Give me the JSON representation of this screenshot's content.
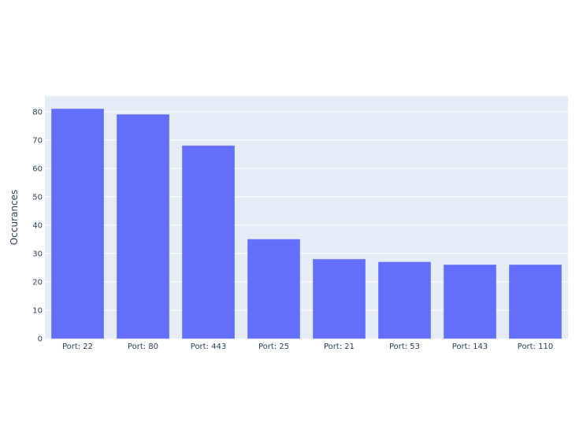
{
  "chart_data": {
    "type": "bar",
    "title": "",
    "xlabel": "",
    "ylabel": "Occurances",
    "categories": [
      "Port: 22",
      "Port: 80",
      "Port: 443",
      "Port: 25",
      "Port: 21",
      "Port: 53",
      "Port: 143",
      "Port: 110"
    ],
    "values": [
      81,
      79,
      68,
      35,
      28,
      27,
      26,
      26
    ],
    "ylim": [
      0,
      85.5
    ],
    "yticks": [
      0,
      10,
      20,
      30,
      40,
      50,
      60,
      70,
      80
    ],
    "grid": true,
    "legend": "none",
    "colors": {
      "bar": "#636efa",
      "plot_bg": "#e5ecf6",
      "grid": "#ffffff",
      "text": "#2a3f5f"
    }
  }
}
